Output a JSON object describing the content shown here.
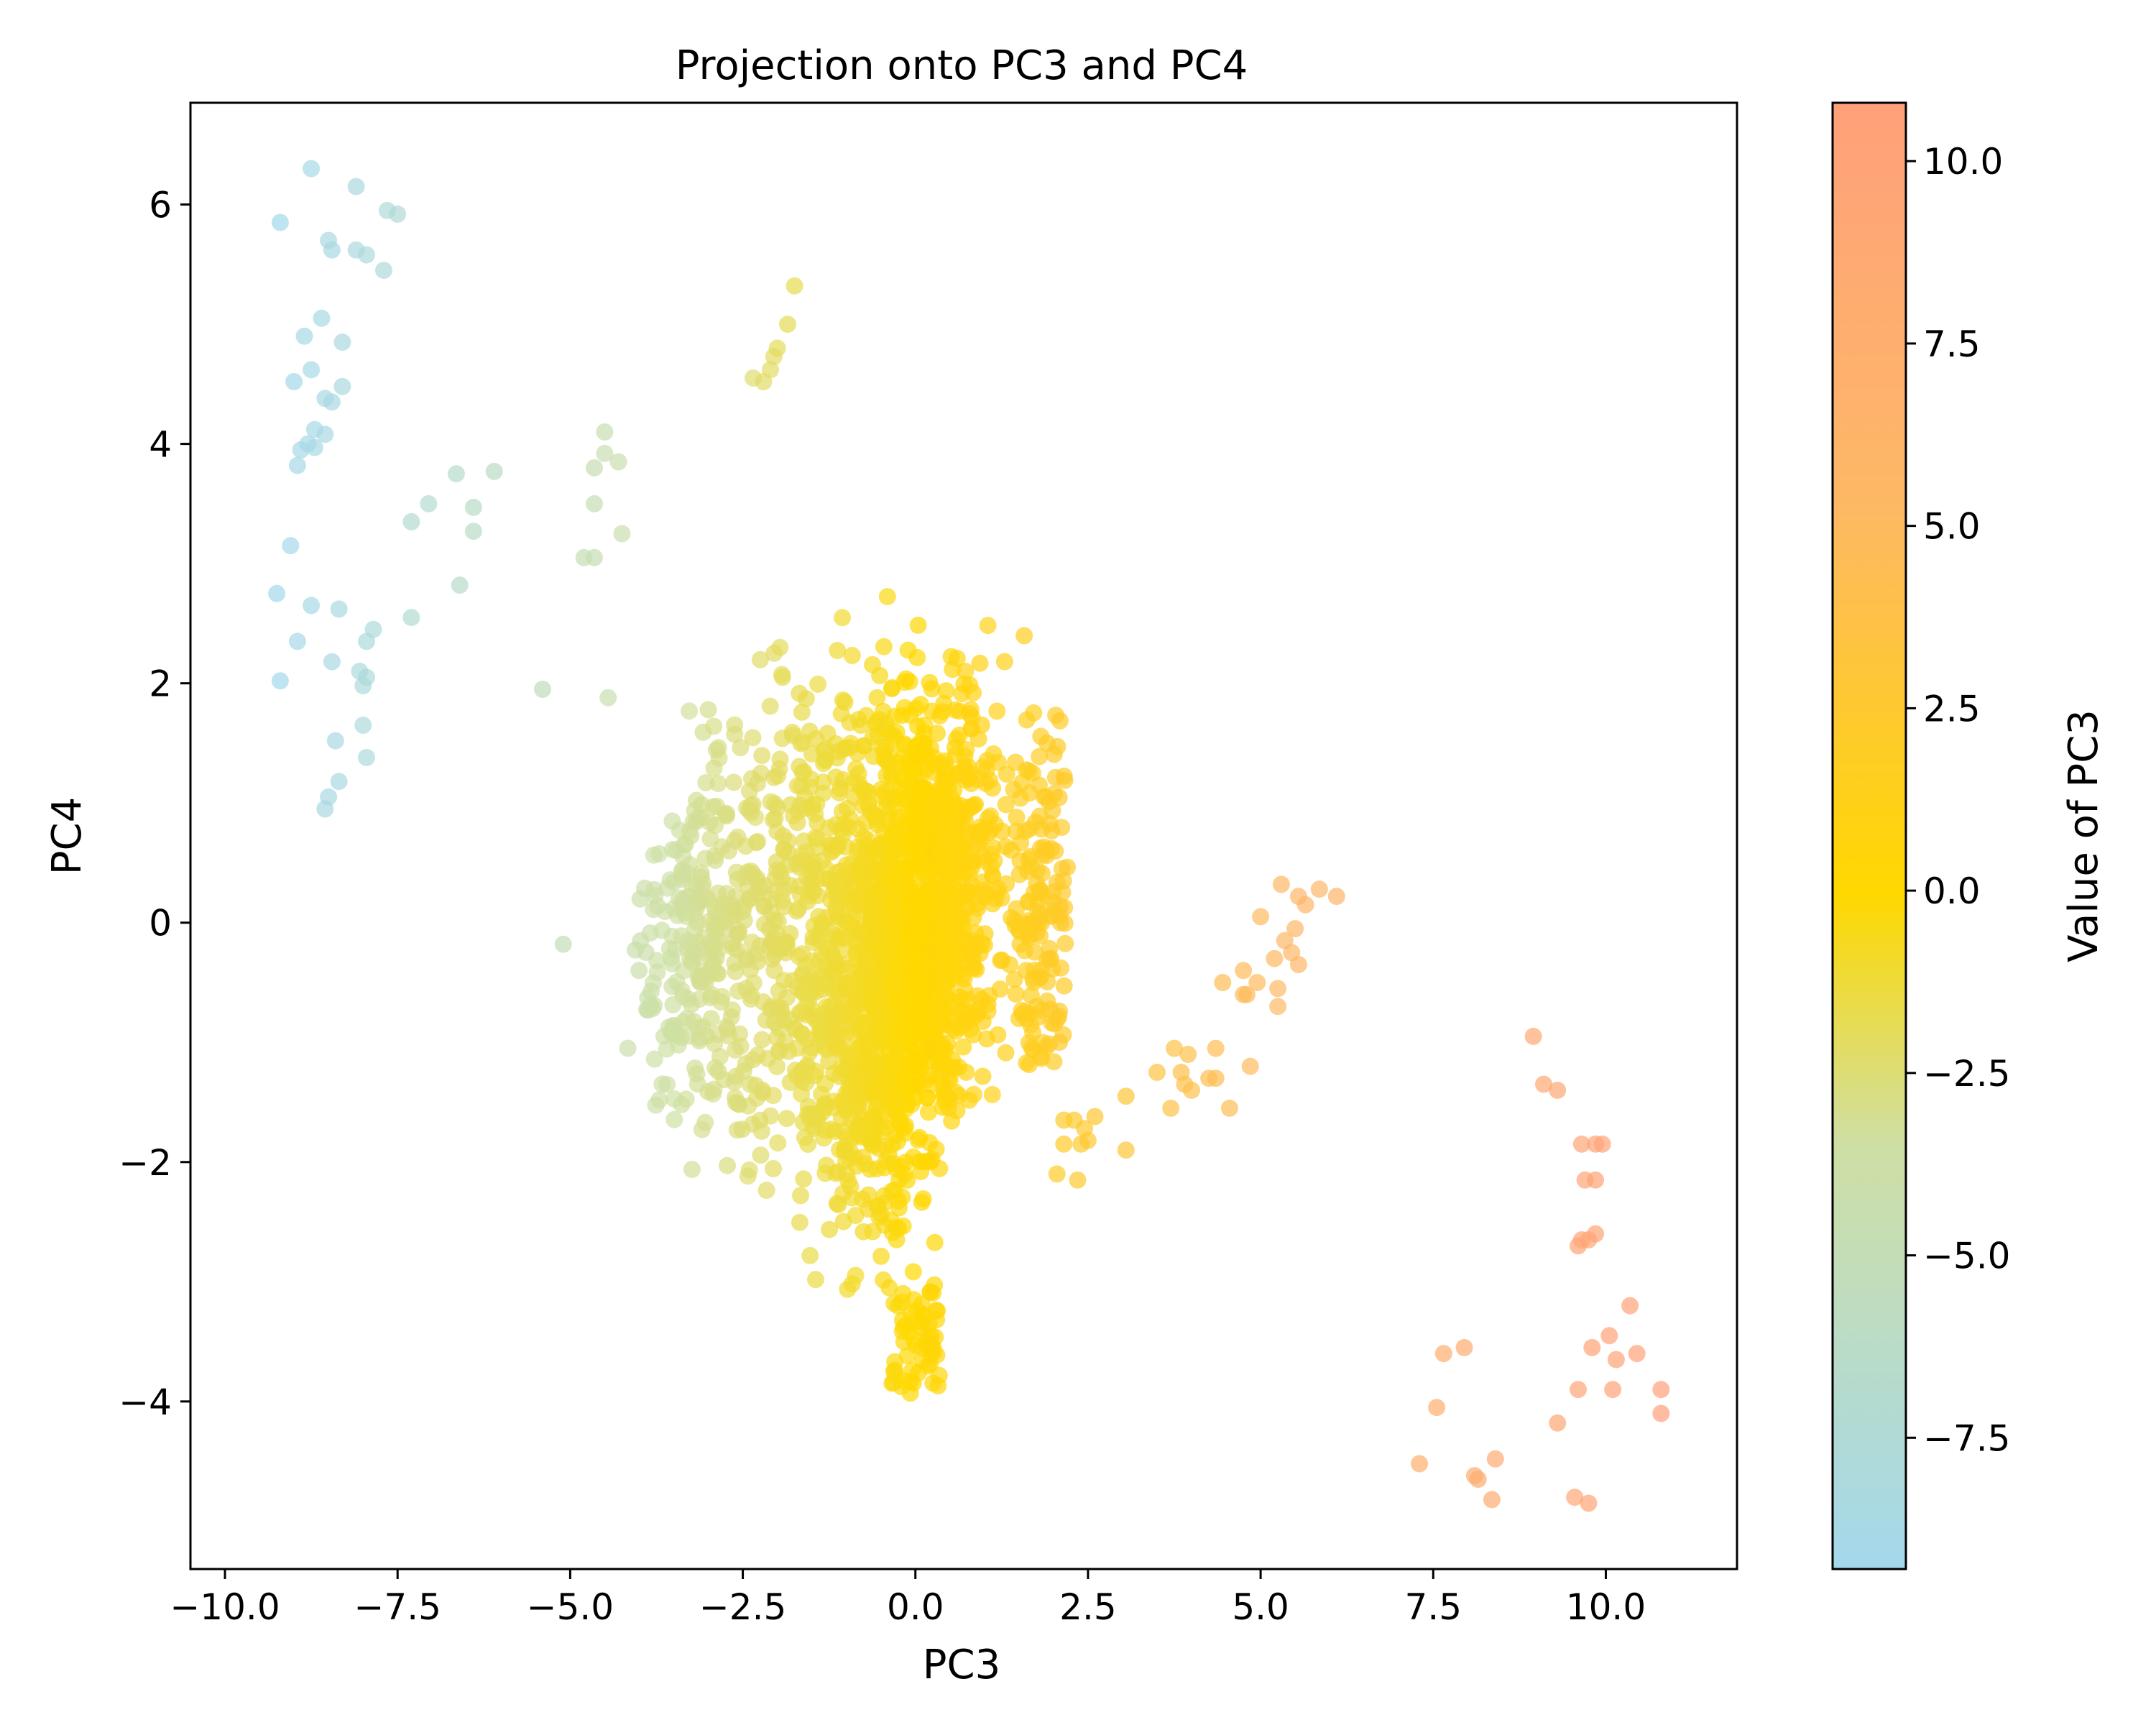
{
  "chart_data": {
    "type": "scatter",
    "title": "Projection onto PC3 and PC4",
    "xlabel": "PC3",
    "ylabel": "PC4",
    "xlim": [
      -10.5,
      11.9
    ],
    "ylim": [
      -5.4,
      6.85
    ],
    "xticks": [
      -10.0,
      -7.5,
      -5.0,
      -2.5,
      0.0,
      2.5,
      5.0,
      7.5,
      10.0
    ],
    "xtick_labels": [
      "−10.0",
      "−7.5",
      "−5.0",
      "−2.5",
      "0.0",
      "2.5",
      "5.0",
      "7.5",
      "10.0"
    ],
    "yticks": [
      -4,
      -2,
      0,
      2,
      4,
      6
    ],
    "ytick_labels": [
      "−4",
      "−2",
      "0",
      "2",
      "4",
      "6"
    ],
    "colorbar": {
      "label": "Value of PC3",
      "range": [
        -9.3,
        10.8
      ],
      "ticks": [
        -7.5,
        -5.0,
        -2.5,
        0.0,
        2.5,
        5.0,
        7.5,
        10.0
      ],
      "tick_labels": [
        "−7.5",
        "−5.0",
        "−2.5",
        "0.0",
        "2.5",
        "5.0",
        "7.5",
        "10.0"
      ],
      "colors": [
        "#A3D8EC",
        "#CFDFA4",
        "#FFD800",
        "#FDB866",
        "#FFA07A"
      ]
    },
    "marker_alpha": 0.7,
    "grid": false,
    "outlier_points": [
      [
        -8.75,
        6.3
      ],
      [
        -8.1,
        6.15
      ],
      [
        -9.2,
        5.85
      ],
      [
        -7.65,
        5.95
      ],
      [
        -7.5,
        5.92
      ],
      [
        -8.5,
        5.7
      ],
      [
        -8.45,
        5.62
      ],
      [
        -8.1,
        5.62
      ],
      [
        -7.95,
        5.58
      ],
      [
        -7.7,
        5.45
      ],
      [
        -8.6,
        5.05
      ],
      [
        -8.85,
        4.9
      ],
      [
        -8.3,
        4.85
      ],
      [
        -8.75,
        4.62
      ],
      [
        -9.0,
        4.52
      ],
      [
        -8.3,
        4.48
      ],
      [
        -8.55,
        4.38
      ],
      [
        -8.45,
        4.35
      ],
      [
        -8.7,
        4.12
      ],
      [
        -8.55,
        4.08
      ],
      [
        -8.8,
        4.0
      ],
      [
        -8.9,
        3.95
      ],
      [
        -8.7,
        3.97
      ],
      [
        -8.95,
        3.82
      ],
      [
        -9.05,
        3.15
      ],
      [
        -9.25,
        2.75
      ],
      [
        -8.75,
        2.65
      ],
      [
        -8.35,
        2.62
      ],
      [
        -8.95,
        2.35
      ],
      [
        -7.85,
        2.45
      ],
      [
        -7.95,
        2.35
      ],
      [
        -8.45,
        2.18
      ],
      [
        -8.05,
        2.1
      ],
      [
        -7.95,
        2.05
      ],
      [
        -8.0,
        1.98
      ],
      [
        -9.2,
        2.02
      ],
      [
        -8.4,
        1.52
      ],
      [
        -8.0,
        1.65
      ],
      [
        -7.95,
        1.38
      ],
      [
        -8.35,
        1.18
      ],
      [
        -8.5,
        1.05
      ],
      [
        -8.55,
        0.95
      ],
      [
        -7.3,
        2.55
      ],
      [
        -7.3,
        3.35
      ],
      [
        -7.05,
        3.5
      ],
      [
        -6.65,
        3.75
      ],
      [
        -6.4,
        3.47
      ],
      [
        -6.4,
        3.27
      ],
      [
        -6.1,
        3.77
      ],
      [
        -6.6,
        2.82
      ],
      [
        -5.4,
        1.95
      ],
      [
        -5.1,
        -0.18
      ],
      [
        -4.8,
        3.05
      ],
      [
        -4.65,
        3.05
      ],
      [
        -4.65,
        3.8
      ],
      [
        -4.5,
        4.1
      ],
      [
        -4.5,
        3.92
      ],
      [
        -4.3,
        3.85
      ],
      [
        -4.65,
        3.5
      ],
      [
        -4.25,
        3.25
      ],
      [
        -4.45,
        1.88
      ],
      [
        -1.75,
        5.32
      ],
      [
        -1.85,
        5.0
      ],
      [
        -2.0,
        4.8
      ],
      [
        -2.05,
        4.73
      ],
      [
        -2.1,
        4.62
      ],
      [
        -2.35,
        4.55
      ],
      [
        -2.2,
        4.52
      ],
      [
        5.3,
        0.32
      ],
      [
        5.55,
        0.22
      ],
      [
        5.65,
        0.15
      ],
      [
        5.85,
        0.28
      ],
      [
        6.1,
        0.22
      ],
      [
        5.0,
        0.05
      ],
      [
        5.5,
        -0.05
      ],
      [
        5.35,
        -0.15
      ],
      [
        5.45,
        -0.25
      ],
      [
        5.2,
        -0.3
      ],
      [
        5.55,
        -0.35
      ],
      [
        5.25,
        -0.55
      ],
      [
        4.75,
        -0.4
      ],
      [
        4.95,
        -0.5
      ],
      [
        4.45,
        -0.5
      ],
      [
        4.75,
        -0.6
      ],
      [
        4.8,
        -0.6
      ],
      [
        5.25,
        -0.7
      ],
      [
        3.75,
        -1.05
      ],
      [
        3.95,
        -1.1
      ],
      [
        4.35,
        -1.05
      ],
      [
        3.5,
        -1.25
      ],
      [
        3.85,
        -1.25
      ],
      [
        4.25,
        -1.3
      ],
      [
        4.35,
        -1.3
      ],
      [
        3.9,
        -1.35
      ],
      [
        4.0,
        -1.4
      ],
      [
        3.7,
        -1.55
      ],
      [
        4.55,
        -1.55
      ],
      [
        4.85,
        -1.2
      ],
      [
        3.05,
        -1.45
      ],
      [
        2.15,
        -1.65
      ],
      [
        2.3,
        -1.65
      ],
      [
        2.6,
        -1.62
      ],
      [
        2.45,
        -1.72
      ],
      [
        2.15,
        -1.85
      ],
      [
        2.4,
        -1.85
      ],
      [
        2.5,
        -1.82
      ],
      [
        3.05,
        -1.9
      ],
      [
        2.05,
        -2.1
      ],
      [
        2.35,
        -2.15
      ],
      [
        8.95,
        -0.95
      ],
      [
        9.1,
        -1.35
      ],
      [
        9.3,
        -1.4
      ],
      [
        9.65,
        -1.85
      ],
      [
        9.85,
        -1.85
      ],
      [
        9.95,
        -1.85
      ],
      [
        9.7,
        -2.15
      ],
      [
        9.85,
        -2.15
      ],
      [
        9.65,
        -2.65
      ],
      [
        9.75,
        -2.65
      ],
      [
        9.85,
        -2.6
      ],
      [
        9.6,
        -2.7
      ],
      [
        10.35,
        -3.2
      ],
      [
        10.05,
        -3.45
      ],
      [
        9.8,
        -3.55
      ],
      [
        10.15,
        -3.65
      ],
      [
        10.45,
        -3.6
      ],
      [
        9.6,
        -3.9
      ],
      [
        10.1,
        -3.9
      ],
      [
        10.8,
        -3.9
      ],
      [
        10.8,
        -4.1
      ],
      [
        9.3,
        -4.18
      ],
      [
        7.95,
        -3.55
      ],
      [
        7.65,
        -3.6
      ],
      [
        7.55,
        -4.05
      ],
      [
        7.3,
        -4.52
      ],
      [
        8.1,
        -4.62
      ],
      [
        8.15,
        -4.65
      ],
      [
        8.4,
        -4.48
      ],
      [
        8.35,
        -4.82
      ],
      [
        9.55,
        -4.8
      ],
      [
        9.75,
        -4.85
      ]
    ]
  }
}
